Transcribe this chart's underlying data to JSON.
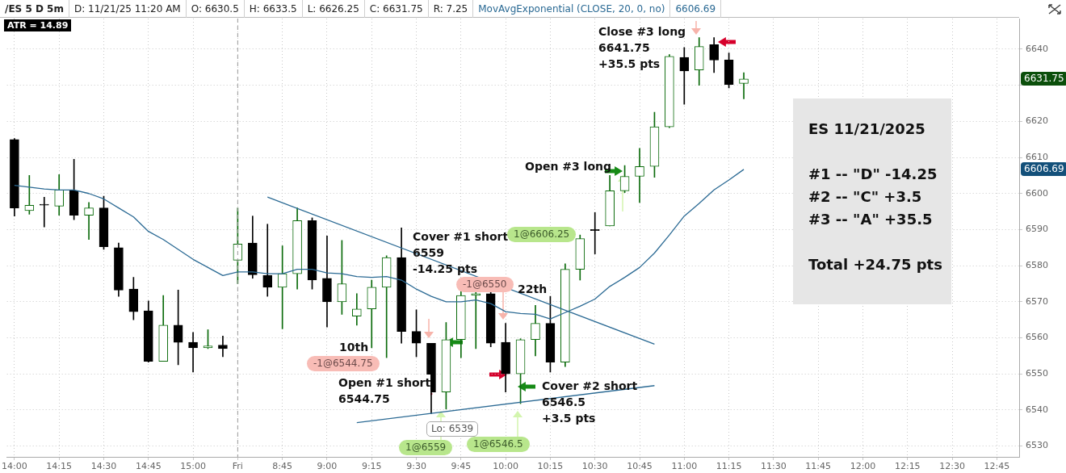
{
  "chart_data": {
    "type": "candlestick",
    "title": "/ES 5 D 5m",
    "categories": [
      "14:00",
      null,
      null,
      "14:15",
      null,
      null,
      "14:30",
      null,
      null,
      "14:45",
      null,
      null,
      "15:00",
      null,
      null,
      "Fri",
      null,
      null,
      "8:45",
      null,
      null,
      "9:00",
      null,
      null,
      "9:15",
      null,
      null,
      "9:30",
      null,
      null,
      "9:45",
      null,
      null,
      "10:00",
      null,
      null,
      "10:15",
      null,
      null,
      "10:30",
      null,
      null,
      "10:45",
      null,
      null,
      "11:00",
      null,
      null,
      "11:15",
      null,
      null,
      "11:30",
      null,
      null,
      "11:45",
      null,
      null,
      "12:00",
      null,
      null,
      "12:15",
      null,
      null,
      "12:30",
      null,
      null,
      "12:45",
      null
    ],
    "series": [
      {
        "ohlc": [
          [
            6615,
            6615.25,
            6593.75,
            6596
          ],
          [
            6595.25,
            6605,
            6594.25,
            6596.75
          ],
          [
            6597,
            6599,
            6590.75,
            6596.75
          ],
          [
            6596.5,
            6605.25,
            6594,
            6601
          ],
          [
            6600.75,
            6609.5,
            6592.75,
            6594
          ],
          [
            6594,
            6597.5,
            6587.25,
            6596
          ],
          [
            6596,
            6599.25,
            6584.5,
            6585.25
          ],
          [
            6585,
            6586.25,
            6571.5,
            6573.25
          ],
          [
            6573.5,
            6576.75,
            6565,
            6567.25
          ],
          [
            6567.5,
            6570.25,
            6553.25,
            6553.5
          ],
          [
            6553.5,
            6571.75,
            6553.5,
            6563.5
          ],
          [
            6563.5,
            6573.25,
            6552.5,
            6558.75
          ],
          [
            6558.75,
            6561.5,
            6550.5,
            6557.25
          ],
          [
            6557.25,
            6562.25,
            6557,
            6557.75
          ],
          [
            6558,
            6560.5,
            6554.75,
            6557
          ],
          [
            6581.5,
            6596,
            6575,
            6586
          ],
          [
            6586.25,
            6593.75,
            6576.5,
            6577.5
          ],
          [
            6577.25,
            6591.5,
            6571.5,
            6574
          ],
          [
            6574,
            6585.5,
            6562.5,
            6577.75
          ],
          [
            6577.75,
            6596,
            6573.5,
            6592.5
          ],
          [
            6592.5,
            6593.25,
            6573.5,
            6576
          ],
          [
            6576.5,
            6588.25,
            6563,
            6570
          ],
          [
            6570,
            6587,
            6566.5,
            6575
          ],
          [
            6566,
            6572.25,
            6563.5,
            6568
          ],
          [
            6568,
            6576,
            6557.25,
            6574
          ],
          [
            6574,
            6582.75,
            6554.5,
            6582.25
          ],
          [
            6582.25,
            6590.5,
            6558.5,
            6561.75
          ],
          [
            6561.75,
            6567.75,
            6554.75,
            6558.5
          ],
          [
            6558.5,
            6558.5,
            6539,
            6545
          ],
          [
            6545,
            6564.25,
            6540.25,
            6559.5
          ],
          [
            6559.5,
            6573,
            6554.5,
            6571.75
          ],
          [
            6571.75,
            6573,
            6557,
            6572.25
          ],
          [
            6572.25,
            6572.75,
            6557.5,
            6558.5
          ],
          [
            6558.75,
            6564,
            6545,
            6550
          ],
          [
            6550,
            6559.75,
            6541.75,
            6559.5
          ],
          [
            6559.5,
            6569,
            6555,
            6564
          ],
          [
            6564,
            6571.5,
            6550.5,
            6553.25
          ],
          [
            6553.25,
            6580.5,
            6552,
            6579
          ],
          [
            6579,
            6588.5,
            6576,
            6587.5
          ],
          [
            6590,
            6594.75,
            6583.25,
            6589.75
          ],
          [
            6591,
            6605,
            6591,
            6600.75
          ],
          [
            6600.75,
            6607.75,
            6600.25,
            6604.75
          ],
          [
            6604.75,
            6612.5,
            6597.5,
            6607.5
          ],
          [
            6607.5,
            6622.5,
            6604.5,
            6618.5
          ],
          [
            6618.5,
            6638.5,
            6618.25,
            6638
          ],
          [
            6637.75,
            6640.5,
            6624.75,
            6634
          ],
          [
            6634.25,
            6643.25,
            6630,
            6640.75
          ],
          [
            6641.25,
            6643.25,
            6633.5,
            6637
          ],
          [
            6637,
            6639,
            6629.25,
            6630.25
          ],
          [
            6630.5,
            6633.5,
            6626.25,
            6631.75
          ],
          null,
          null,
          null,
          null,
          null,
          null,
          null,
          null,
          null,
          null,
          null,
          null,
          null,
          null,
          null,
          null,
          null,
          null
        ],
        "colors": [
          "#000000",
          "#0b6b0b",
          "#000000",
          "#0b6b0b",
          "#000000",
          "#0b6b0b",
          "#000000",
          "#000000",
          "#000000",
          "#000000",
          "#0b6b0b",
          "#000000",
          "#000000",
          "#0b6b0b",
          "#000000",
          "#0b6b0b",
          "#000000",
          "#000000",
          "#0b6b0b",
          "#0b6b0b",
          "#000000",
          "#000000",
          "#0b6b0b",
          "#0b6b0b",
          "#0b6b0b",
          "#0b6b0b",
          "#000000",
          "#000000",
          "#000000",
          "#0b6b0b",
          "#0b6b0b",
          "#0b6b0b",
          "#000000",
          "#000000",
          "#0b6b0b",
          "#0b6b0b",
          "#000000",
          "#0b6b0b",
          "#0b6b0b",
          "#000000",
          "#0b6b0b",
          "#0b6b0b",
          "#0b6b0b",
          "#0b6b0b",
          "#0b6b0b",
          "#000000",
          "#0b6b0b",
          "#000000",
          "#000000",
          "#0b6b0b",
          null,
          null,
          null,
          null,
          null,
          null,
          null,
          null,
          null,
          null,
          null,
          null,
          null,
          null,
          null,
          null,
          null,
          null
        ]
      },
      {
        "type": "line",
        "name": "MovAvgExponential (CLOSE, 20, 0, no)",
        "color": "#2b6a94",
        "values": [
          6602.25,
          6601.75,
          6601.25,
          6601,
          6601,
          6600,
          6598.5,
          6596,
          6593.5,
          6589.5,
          6587.25,
          6584.5,
          6581.75,
          6579.5,
          6577.25,
          6578.25,
          6578.25,
          6577.75,
          6577.75,
          6579,
          6579,
          6578,
          6577.75,
          6577,
          6576.75,
          6577,
          6576,
          6573.5,
          6571.5,
          6570,
          6570,
          6570.5,
          6569.5,
          6567.25,
          6566.75,
          6566.5,
          6565.25,
          6567,
          6568.75,
          6570.75,
          6574.25,
          6576.75,
          6579.5,
          6583.5,
          6588.5,
          6593.75,
          6597.25,
          6601,
          6603.75,
          6606.69,
          null,
          null,
          null,
          null,
          null,
          null,
          null,
          null,
          null,
          null,
          null,
          null,
          null,
          null,
          null,
          null,
          null,
          null
        ]
      },
      {
        "type": "line",
        "color": "#2b6a94",
        "values": [
          null,
          null,
          null,
          null,
          null,
          null,
          null,
          null,
          null,
          null,
          null,
          null,
          null,
          null,
          null,
          null,
          null,
          6599,
          null,
          null,
          null,
          null,
          null,
          null,
          null,
          null,
          null,
          null,
          null,
          null,
          null,
          null,
          null,
          null,
          null,
          null,
          null,
          null,
          null,
          null,
          null,
          null,
          null,
          6558.25,
          null,
          null,
          null,
          null,
          null,
          null,
          null,
          null,
          null,
          null,
          null,
          null,
          null,
          null,
          null,
          null,
          null,
          null,
          null,
          null,
          null,
          null,
          null,
          null
        ]
      },
      {
        "type": "line",
        "color": "#2b6a94",
        "values": [
          null,
          null,
          null,
          null,
          null,
          null,
          null,
          null,
          null,
          null,
          null,
          null,
          null,
          null,
          null,
          null,
          null,
          null,
          null,
          null,
          null,
          null,
          null,
          6536.5,
          null,
          null,
          null,
          null,
          null,
          null,
          null,
          null,
          null,
          null,
          null,
          null,
          null,
          null,
          null,
          null,
          null,
          null,
          null,
          6546.75,
          null,
          null,
          null,
          null,
          null,
          null,
          null,
          null,
          null,
          null,
          null,
          null,
          null,
          null,
          null,
          null,
          null,
          null,
          null,
          null,
          null,
          null,
          null,
          null
        ]
      }
    ],
    "ylim": [
      6527,
      6648.5
    ],
    "yticks": [
      6530,
      6540,
      6550,
      6560,
      6570,
      6580,
      6590,
      6600,
      6610,
      6620,
      {
        "value": 6630,
        "label": null
      },
      6640
    ],
    "grid": true,
    "marker": "none",
    "ref_lines": [
      {
        "axis": "x",
        "value": "Fri",
        "color": "#9a9a9a",
        "line_style": "dashed"
      }
    ],
    "annotations": [
      "ATR = 14.89",
      "10th",
      "Open #1 short\n6544.75",
      "Cover #1 short\n6559\n-14.25 pts",
      "-1@6544.75",
      "-1@6550",
      "22th",
      "Lo: 6539",
      "1@6559",
      "1@6546.5",
      "Cover #2 short\n6546.5\n+3.5 pts",
      "1@6606.25",
      "Open #3 long",
      "Close #3 long\n6641.75\n+35.5 pts",
      "ES 11/21/2025\n\n#1 -- \"D\" -14.25\n#2 -- \"C\" +3.5\n#3 -- \"A\" +35.5\n\nTotal +24.75 pts",
      "6631.75",
      "6606.69",
      "D: 11/21/25 11:20 AM",
      "O: 6630.5",
      "H: 6633.5",
      "L: 6626.25",
      "C: 6631.75",
      "R: 7.25",
      "6606.69"
    ]
  }
}
